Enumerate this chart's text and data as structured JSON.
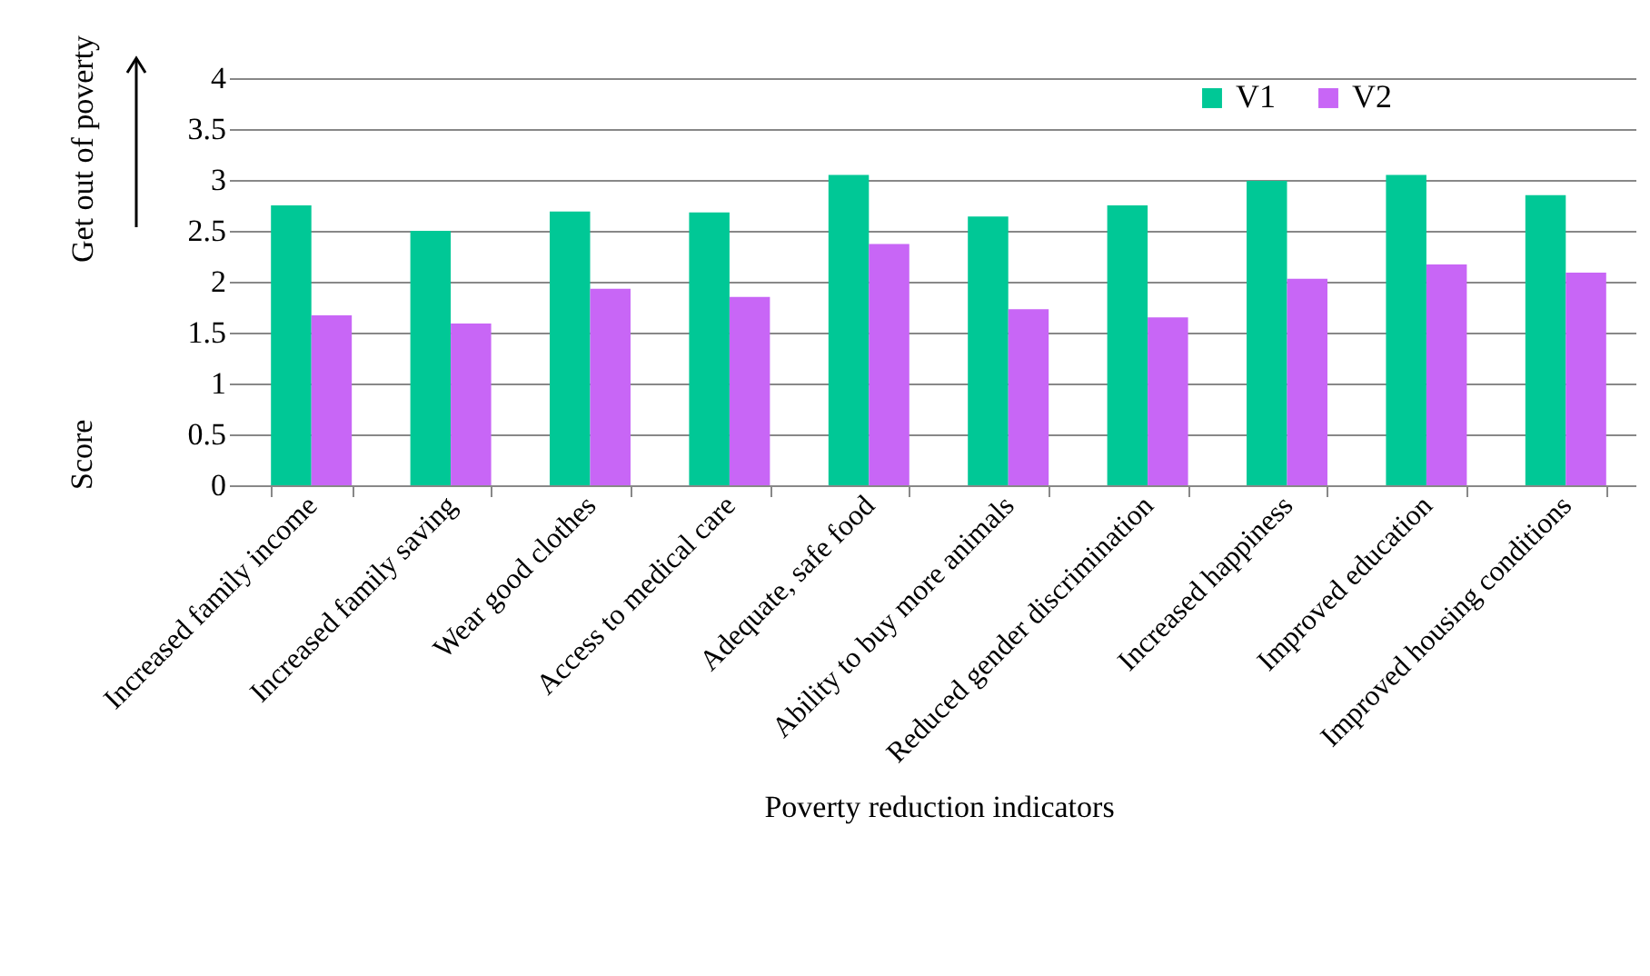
{
  "chart_data": {
    "type": "bar",
    "xlabel": "Poverty reduction indicators",
    "ylabel": "Score",
    "annotations": [
      "Get out of poverty"
    ],
    "categories": [
      "Increased family income",
      "Increased family saving",
      "Wear good clothes",
      "Access to medical care",
      "Adequate, safe food",
      "Ability to buy more animals",
      "Reduced gender discrimination",
      "Increased happiness",
      "Improved education",
      "Improved housing conditions"
    ],
    "series": [
      {
        "name": "V1",
        "color": "#00c896",
        "values": [
          2.75,
          2.5,
          2.69,
          2.68,
          3.05,
          2.64,
          2.75,
          2.99,
          3.05,
          2.85
        ]
      },
      {
        "name": "V2",
        "color": "#c866f6",
        "values": [
          1.67,
          1.59,
          1.93,
          1.85,
          2.37,
          1.73,
          1.65,
          2.03,
          2.17,
          2.09
        ]
      }
    ],
    "ylim": [
      0,
      4
    ],
    "yticks": [
      0,
      0.5,
      1,
      1.5,
      2,
      2.5,
      3,
      3.5,
      4
    ],
    "grid": "y",
    "legend": "top right"
  }
}
